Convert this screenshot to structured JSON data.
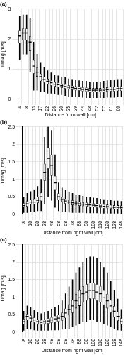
{
  "chart_data": [
    {
      "type": "box",
      "title": "(a)",
      "x_label": "Distance from wall [cm]",
      "y_label": "Umag [m/s]",
      "color": "#000000",
      "grid": true,
      "ylim": [
        0,
        3
      ],
      "yticks": [
        0,
        1,
        2,
        3
      ],
      "categories": [
        4,
        null,
        8,
        null,
        13,
        null,
        17,
        null,
        22,
        null,
        26,
        null,
        30,
        null,
        35,
        null,
        39,
        null,
        44,
        null,
        48,
        null,
        52,
        null,
        57,
        null,
        61,
        null,
        66,
        null
      ],
      "values": [
        [
          1.3,
          1.85,
          2.1,
          2.3,
          2.75
        ],
        [
          1.5,
          1.95,
          2.2,
          2.35,
          2.8
        ],
        [
          1.5,
          1.95,
          2.2,
          2.35,
          2.8
        ],
        [
          0.9,
          1.6,
          1.9,
          2.1,
          2.7
        ],
        [
          0.3,
          0.85,
          1.1,
          1.3,
          1.9
        ],
        [
          0.3,
          0.75,
          0.9,
          1.05,
          1.5
        ],
        [
          0.25,
          0.6,
          0.75,
          0.85,
          1.2
        ],
        [
          0.25,
          0.55,
          0.65,
          0.75,
          1.05
        ],
        [
          0.2,
          0.5,
          0.6,
          0.68,
          0.95
        ],
        [
          0.2,
          0.45,
          0.55,
          0.62,
          0.88
        ],
        [
          0.18,
          0.42,
          0.5,
          0.57,
          0.8
        ],
        [
          0.15,
          0.4,
          0.48,
          0.55,
          0.78
        ],
        [
          0.15,
          0.37,
          0.45,
          0.52,
          0.74
        ],
        [
          0.12,
          0.35,
          0.42,
          0.5,
          0.72
        ],
        [
          0.1,
          0.33,
          0.4,
          0.47,
          0.68
        ],
        [
          0.1,
          0.31,
          0.38,
          0.45,
          0.66
        ],
        [
          0.08,
          0.29,
          0.36,
          0.43,
          0.64
        ],
        [
          0.08,
          0.28,
          0.35,
          0.42,
          0.62
        ],
        [
          0.06,
          0.26,
          0.33,
          0.4,
          0.6
        ],
        [
          0.05,
          0.25,
          0.32,
          0.39,
          0.6
        ],
        [
          0.05,
          0.23,
          0.3,
          0.37,
          0.58
        ],
        [
          0.05,
          0.23,
          0.3,
          0.37,
          0.58
        ],
        [
          0.05,
          0.23,
          0.3,
          0.37,
          0.58
        ],
        [
          0.05,
          0.23,
          0.3,
          0.37,
          0.58
        ],
        [
          0.05,
          0.23,
          0.3,
          0.38,
          0.6
        ],
        [
          0.06,
          0.25,
          0.32,
          0.4,
          0.62
        ],
        [
          0.06,
          0.26,
          0.33,
          0.41,
          0.64
        ],
        [
          0.06,
          0.26,
          0.33,
          0.41,
          0.64
        ],
        [
          0.08,
          0.27,
          0.35,
          0.43,
          0.66
        ],
        [
          0.08,
          0.27,
          0.35,
          0.43,
          0.66
        ]
      ]
    },
    {
      "type": "box",
      "title": "(b)",
      "x_label": "Distance from right wall [cm]",
      "y_label": "Umag [m/s]",
      "color": "#000000",
      "grid": true,
      "ylim": [
        0,
        2.5
      ],
      "yticks": [
        0,
        0.5,
        1,
        1.5,
        2,
        2.5
      ],
      "categories": [
        8,
        null,
        18,
        null,
        28,
        null,
        38,
        null,
        48,
        null,
        58,
        null,
        68,
        null,
        78,
        null,
        88,
        null,
        98,
        null,
        108,
        null,
        118,
        null,
        128,
        null,
        138,
        null,
        148
      ],
      "values": [
        [
          0.05,
          0.2,
          0.25,
          0.32,
          0.5
        ],
        [
          0.05,
          0.22,
          0.3,
          0.38,
          0.6
        ],
        [
          0.08,
          0.28,
          0.35,
          0.42,
          0.65
        ],
        [
          0.08,
          0.28,
          0.35,
          0.45,
          0.7
        ],
        [
          0.1,
          0.32,
          0.4,
          0.5,
          0.8
        ],
        [
          0.1,
          0.38,
          0.5,
          0.62,
          1.0
        ],
        [
          0.3,
          0.95,
          1.2,
          1.45,
          2.2
        ],
        [
          0.5,
          1.3,
          1.6,
          1.9,
          2.5
        ],
        [
          0.4,
          1.1,
          1.4,
          1.7,
          2.4
        ],
        [
          0.2,
          0.7,
          0.9,
          1.1,
          1.7
        ],
        [
          0.1,
          0.4,
          0.5,
          0.6,
          0.9
        ],
        [
          0.08,
          0.35,
          0.42,
          0.5,
          0.75
        ],
        [
          0.08,
          0.3,
          0.38,
          0.45,
          0.68
        ],
        [
          0.06,
          0.28,
          0.35,
          0.42,
          0.62
        ],
        [
          0.05,
          0.26,
          0.33,
          0.4,
          0.6
        ],
        [
          0.05,
          0.25,
          0.32,
          0.38,
          0.56
        ],
        [
          0.05,
          0.24,
          0.3,
          0.36,
          0.54
        ],
        [
          0.05,
          0.23,
          0.29,
          0.35,
          0.52
        ],
        [
          0.04,
          0.22,
          0.28,
          0.34,
          0.5
        ],
        [
          0.04,
          0.21,
          0.27,
          0.33,
          0.48
        ],
        [
          0.04,
          0.2,
          0.26,
          0.32,
          0.47
        ],
        [
          0.04,
          0.19,
          0.25,
          0.31,
          0.46
        ],
        [
          0.03,
          0.18,
          0.24,
          0.3,
          0.44
        ],
        [
          0.03,
          0.17,
          0.23,
          0.29,
          0.42
        ],
        [
          0.03,
          0.17,
          0.22,
          0.28,
          0.41
        ],
        [
          0.03,
          0.16,
          0.21,
          0.27,
          0.4
        ],
        [
          0.03,
          0.15,
          0.2,
          0.26,
          0.38
        ],
        [
          0.03,
          0.15,
          0.2,
          0.26,
          0.38
        ],
        [
          0.02,
          0.14,
          0.19,
          0.25,
          0.37
        ]
      ]
    },
    {
      "type": "box",
      "title": "(c)",
      "x_label": "Distance from right wall [cm]",
      "y_label": "Umag [m/s]",
      "color": "#000000",
      "grid": true,
      "ylim": [
        0,
        2.5
      ],
      "yticks": [
        0,
        0.5,
        1,
        1.5,
        2,
        2.5
      ],
      "categories": [
        8,
        null,
        18,
        null,
        28,
        null,
        38,
        null,
        48,
        null,
        58,
        null,
        68,
        null,
        78,
        null,
        88,
        null,
        98,
        null,
        108,
        null,
        118,
        null,
        128,
        null,
        138,
        null,
        148
      ],
      "values": [
        [
          0.05,
          0.22,
          0.3,
          0.38,
          0.6
        ],
        [
          0.1,
          0.35,
          0.45,
          0.52,
          0.75
        ],
        [
          0.08,
          0.3,
          0.4,
          0.48,
          0.7
        ],
        [
          0.06,
          0.27,
          0.35,
          0.42,
          0.62
        ],
        [
          0.05,
          0.23,
          0.3,
          0.37,
          0.56
        ],
        [
          0.05,
          0.21,
          0.28,
          0.35,
          0.53
        ],
        [
          0.05,
          0.23,
          0.3,
          0.37,
          0.56
        ],
        [
          0.05,
          0.24,
          0.32,
          0.4,
          0.6
        ],
        [
          0.06,
          0.26,
          0.35,
          0.43,
          0.66
        ],
        [
          0.06,
          0.28,
          0.38,
          0.47,
          0.72
        ],
        [
          0.06,
          0.3,
          0.4,
          0.5,
          0.78
        ],
        [
          0.08,
          0.33,
          0.45,
          0.56,
          0.9
        ],
        [
          0.1,
          0.4,
          0.55,
          0.68,
          1.1
        ],
        [
          0.1,
          0.48,
          0.65,
          0.8,
          1.3
        ],
        [
          0.15,
          0.55,
          0.75,
          0.92,
          1.5
        ],
        [
          0.2,
          0.68,
          0.9,
          1.1,
          1.7
        ],
        [
          0.25,
          0.75,
          1.0,
          1.2,
          1.85
        ],
        [
          0.3,
          0.85,
          1.1,
          1.32,
          2.0
        ],
        [
          0.3,
          0.9,
          1.15,
          1.38,
          2.1
        ],
        [
          0.35,
          0.95,
          1.2,
          1.42,
          2.15
        ],
        [
          0.35,
          0.95,
          1.2,
          1.42,
          2.15
        ],
        [
          0.3,
          0.9,
          1.15,
          1.38,
          2.1
        ],
        [
          0.3,
          0.85,
          1.1,
          1.32,
          2.0
        ],
        [
          0.25,
          0.78,
          1.0,
          1.2,
          1.85
        ],
        [
          0.2,
          0.68,
          0.9,
          1.1,
          1.7
        ],
        [
          0.15,
          0.55,
          0.75,
          0.92,
          1.45
        ],
        [
          0.1,
          0.42,
          0.6,
          0.75,
          1.2
        ],
        [
          0.06,
          0.32,
          0.45,
          0.58,
          0.95
        ],
        [
          0.05,
          0.22,
          0.3,
          0.4,
          0.65
        ]
      ]
    }
  ]
}
